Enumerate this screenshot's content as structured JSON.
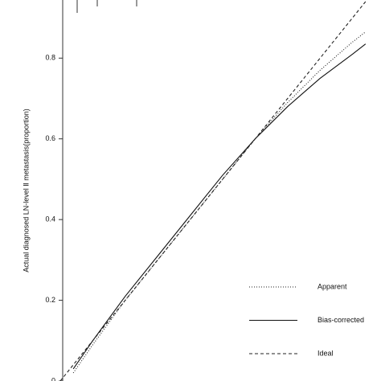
{
  "chart_data": {
    "type": "line",
    "y_label": "Actual diagnosed LN-level Ⅱ metastasis(proportion)",
    "x": [
      0,
      0.04,
      0.1,
      0.2,
      0.3,
      0.4,
      0.5,
      0.6,
      0.7,
      0.8,
      0.9,
      0.94
    ],
    "series": [
      {
        "name": "Apparent",
        "color": "#222222",
        "dash": "1,2",
        "values": [
          null,
          0.02,
          0.09,
          0.2,
          0.3,
          0.4,
          0.5,
          0.6,
          0.69,
          0.77,
          0.84,
          0.865
        ]
      },
      {
        "name": "Bias-corrected",
        "color": "#111111",
        "dash": "none",
        "values": [
          null,
          0.03,
          0.1,
          0.21,
          0.31,
          0.41,
          0.51,
          0.6,
          0.68,
          0.75,
          0.81,
          0.835
        ]
      },
      {
        "name": "Ideal",
        "color": "#222222",
        "dash": "4,3",
        "values": [
          0,
          0.04,
          0.1,
          0.2,
          0.3,
          0.4,
          0.5,
          0.6,
          0.7,
          0.8,
          0.9,
          0.94
        ]
      }
    ],
    "xlim": [
      0,
      0.99
    ],
    "ylim": [
      0,
      0.944
    ],
    "yticks": [
      0,
      0.2,
      0.4,
      0.6,
      0.8
    ]
  }
}
